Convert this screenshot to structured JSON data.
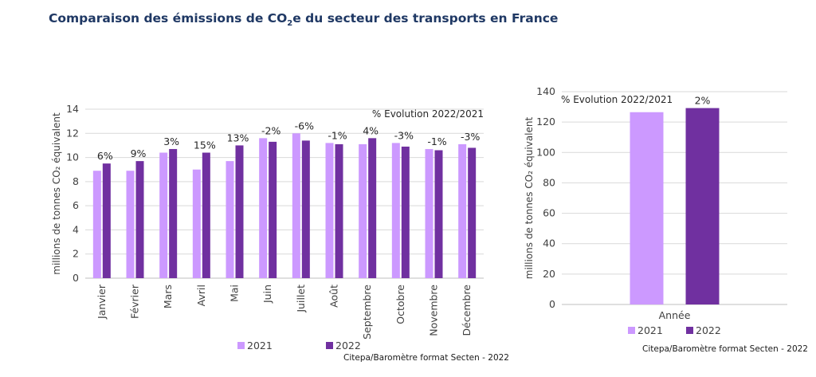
{
  "title": {
    "prefix": "Comparaison des émissions de CO",
    "subscript": "2",
    "suffix": "e du secteur des transports en France"
  },
  "source": "Citepa/Baromètre format Secten - 2022",
  "colors": {
    "s2021": "#cc99ff",
    "s2022": "#7030a0",
    "grid": "#d9d9d9",
    "text": "#404040"
  },
  "chart_data": [
    {
      "type": "bar",
      "categories": [
        "Janvier",
        "Février",
        "Mars",
        "Avril",
        "Mai",
        "Juin",
        "Juillet",
        "Août",
        "Septembre",
        "Octobre",
        "Novembre",
        "Décembre"
      ],
      "series": [
        {
          "name": "2021",
          "values": [
            8.9,
            8.9,
            10.4,
            9.0,
            9.7,
            11.6,
            12.0,
            11.2,
            11.1,
            11.2,
            10.7,
            11.1
          ]
        },
        {
          "name": "2022",
          "values": [
            9.5,
            9.7,
            10.7,
            10.4,
            11.0,
            11.3,
            11.4,
            11.1,
            11.6,
            10.9,
            10.6,
            10.8
          ]
        }
      ],
      "data_labels": [
        "6%",
        "9%",
        "3%",
        "15%",
        "13%",
        "-2%",
        "-6%",
        "-1%",
        "4%",
        "-3%",
        "-1%",
        "-3%"
      ],
      "annotation": "% Evolution 2022/2021",
      "ylabel": "millions de tonnes CO₂ équivalent",
      "ylim": [
        0,
        14
      ],
      "yticks": [
        0,
        2,
        4,
        6,
        8,
        10,
        12,
        14
      ],
      "grid": true,
      "legend_position": "bottom"
    },
    {
      "type": "bar",
      "categories": [
        "Année"
      ],
      "series": [
        {
          "name": "2021",
          "values": [
            126.5
          ]
        },
        {
          "name": "2022",
          "values": [
            129.2
          ]
        }
      ],
      "data_labels": [
        "2%"
      ],
      "annotation": "% Evolution 2022/2021",
      "ylabel": "millions de tonnes CO₂ équivalent",
      "ylim": [
        0,
        140
      ],
      "yticks": [
        0,
        20,
        40,
        60,
        80,
        100,
        120,
        140
      ],
      "grid": true,
      "legend_position": "bottom"
    }
  ]
}
